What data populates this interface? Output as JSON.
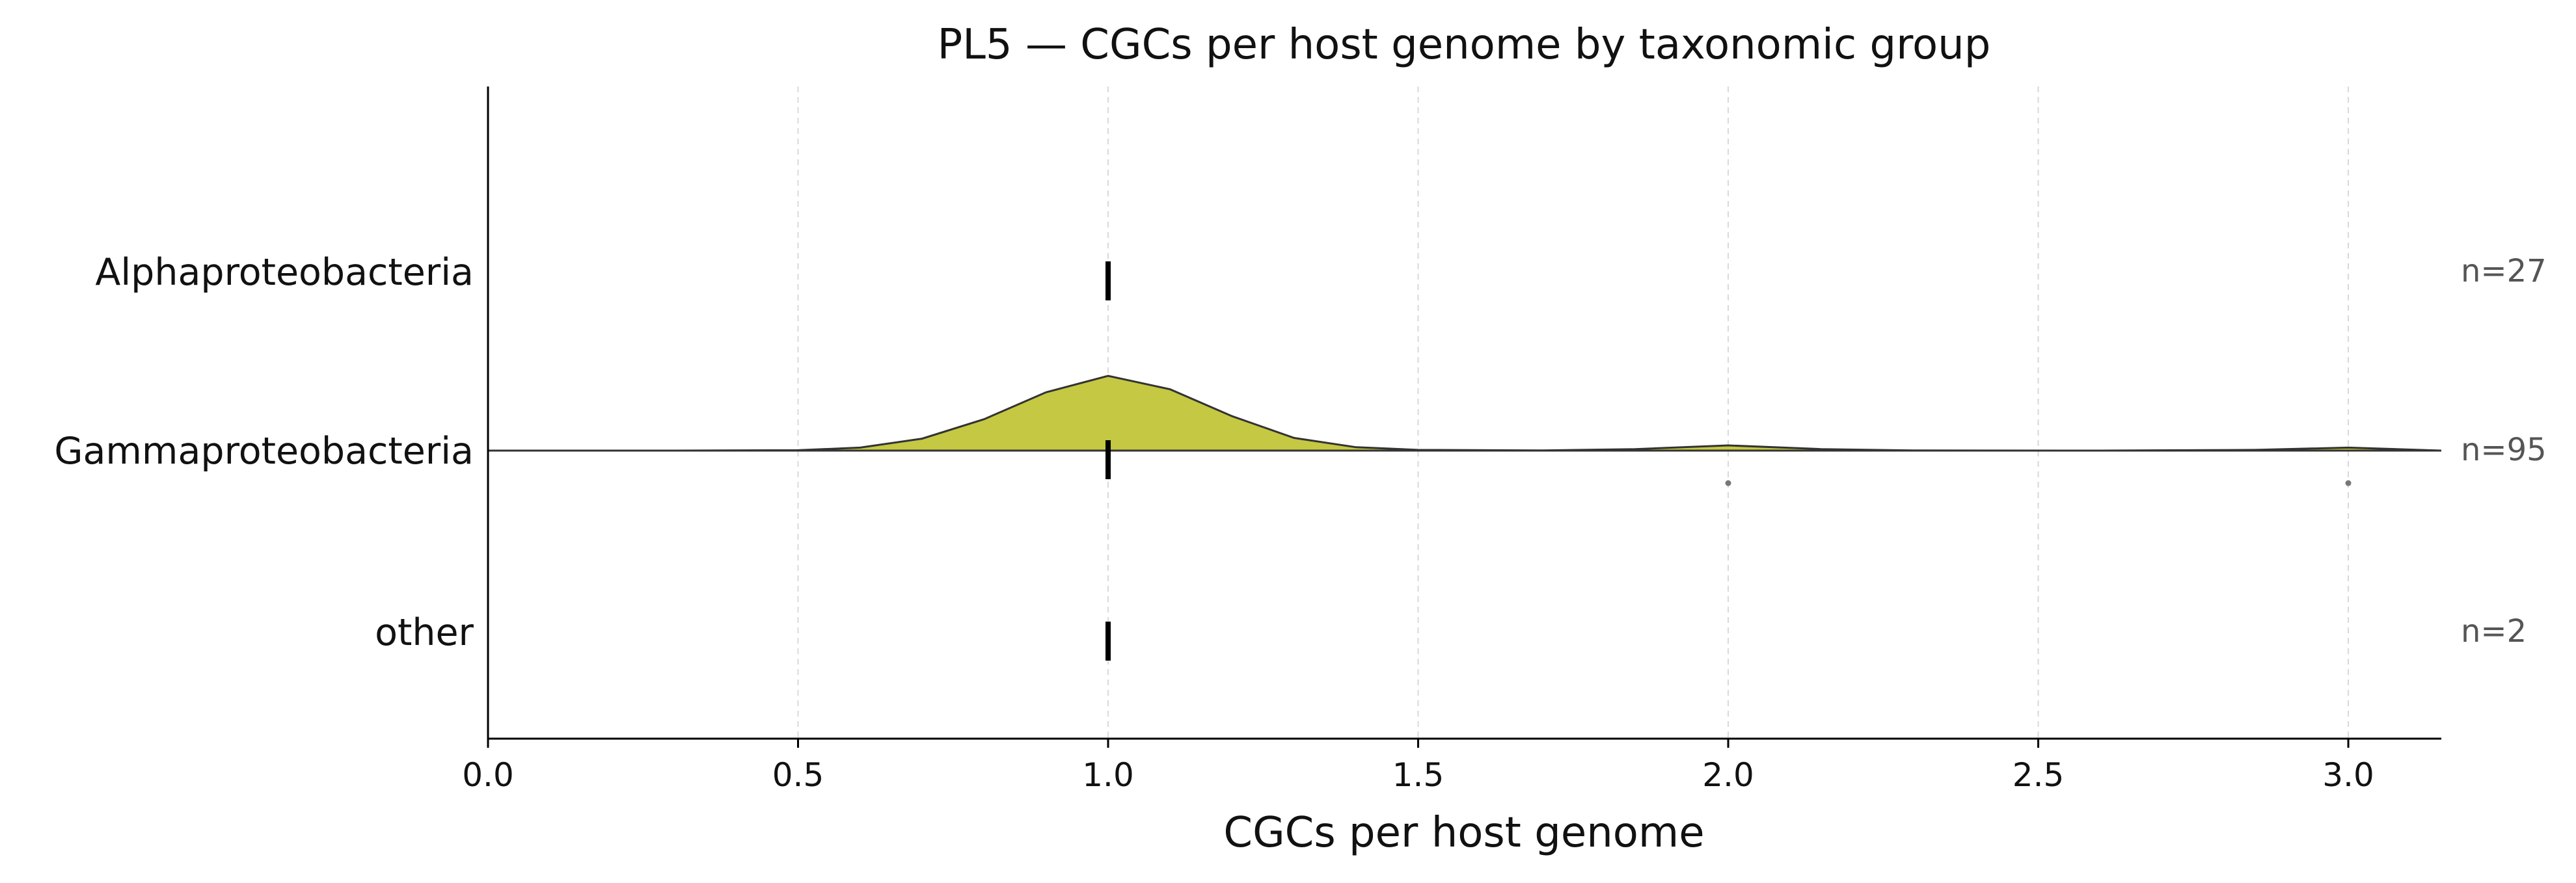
{
  "chart_data": {
    "type": "ridgeline",
    "title": "PL5 — CGCs per host genome by taxonomic group",
    "xlabel": "CGCs per host genome",
    "ylabel": "",
    "xlim": [
      0.0,
      3.15
    ],
    "xticks": [
      0.0,
      0.5,
      1.0,
      1.5,
      2.0,
      2.5,
      3.0
    ],
    "xtick_labels": [
      "0.0",
      "0.5",
      "1.0",
      "1.5",
      "2.0",
      "2.5",
      "3.0"
    ],
    "grid": "vertical dashed",
    "categories": [
      "Alphaproteobacteria",
      "Gammaproteobacteria",
      "other"
    ],
    "counts": [
      "n=27",
      "n=95",
      "n=2"
    ],
    "medians": [
      1.0,
      1.0,
      1.0
    ],
    "density": {
      "category": "Gammaproteobacteria",
      "fill": "#c5c842",
      "x": [
        0.0,
        0.3,
        0.5,
        0.6,
        0.7,
        0.8,
        0.9,
        1.0,
        1.1,
        1.2,
        1.3,
        1.4,
        1.5,
        1.7,
        1.85,
        2.0,
        2.15,
        2.3,
        2.6,
        2.85,
        3.0,
        3.15
      ],
      "y": [
        0.0,
        0.0,
        0.005,
        0.04,
        0.16,
        0.42,
        0.78,
        1.0,
        0.82,
        0.46,
        0.17,
        0.045,
        0.01,
        0.002,
        0.02,
        0.07,
        0.02,
        0.002,
        0.0,
        0.01,
        0.04,
        0.0
      ]
    },
    "outliers": [
      {
        "category": "Gammaproteobacteria",
        "x": 2.0
      },
      {
        "category": "Gammaproteobacteria",
        "x": 3.0
      }
    ]
  }
}
